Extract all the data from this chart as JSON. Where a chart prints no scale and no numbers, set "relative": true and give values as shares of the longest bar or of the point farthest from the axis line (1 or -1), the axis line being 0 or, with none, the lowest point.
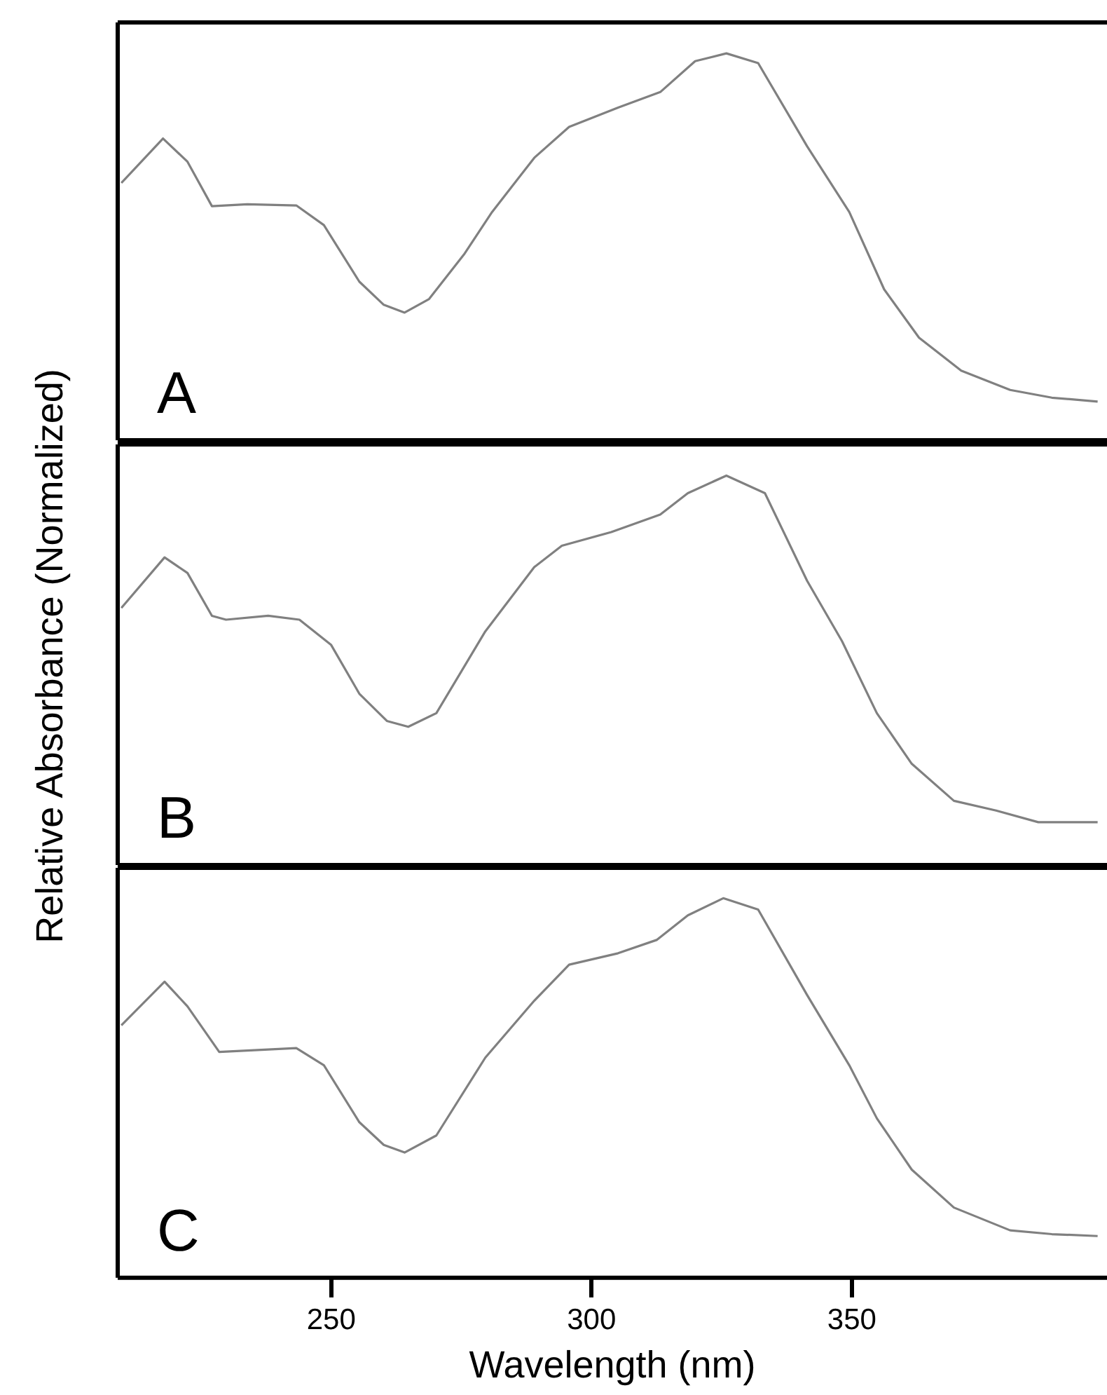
{
  "chart_data": [
    {
      "type": "line",
      "relative": true,
      "color": "#808080",
      "marker": "none",
      "line_style": "solid",
      "grid": false,
      "legend": false,
      "tick_labels": false,
      "xlim": [
        209,
        399
      ],
      "annotations": [
        "A"
      ],
      "x": [
        209.7,
        217.7,
        222.4,
        227.1,
        233.9,
        243.3,
        248.6,
        255.4,
        260.1,
        264.1,
        268.8,
        275.5,
        280.9,
        289.0,
        295.7,
        305.1,
        313.2,
        319.9,
        325.9,
        332.0,
        341.4,
        349.5,
        356.2,
        362.9,
        371.0,
        380.4,
        388.4,
        397.2
      ],
      "values": [
        0.665,
        0.78,
        0.72,
        0.605,
        0.61,
        0.607,
        0.556,
        0.41,
        0.35,
        0.33,
        0.365,
        0.48,
        0.59,
        0.73,
        0.81,
        0.86,
        0.9,
        0.98,
        1.0,
        0.975,
        0.76,
        0.59,
        0.39,
        0.265,
        0.18,
        0.13,
        0.11,
        0.1
      ]
    },
    {
      "type": "line",
      "relative": true,
      "color": "#808080",
      "marker": "none",
      "line_style": "solid",
      "grid": false,
      "legend": false,
      "tick_labels": false,
      "xlim": [
        209,
        399
      ],
      "annotations": [
        "B"
      ],
      "ylabel": "Relative Absorbance (Normalized)",
      "x": [
        209.7,
        218.0,
        222.4,
        227.1,
        229.8,
        237.9,
        243.9,
        250.0,
        255.4,
        260.7,
        264.8,
        270.2,
        279.6,
        289.0,
        294.3,
        303.8,
        313.2,
        318.5,
        325.9,
        333.3,
        341.4,
        348.1,
        354.8,
        361.5,
        369.6,
        377.7,
        385.8,
        397.2
      ],
      "values": [
        0.66,
        0.79,
        0.75,
        0.64,
        0.63,
        0.64,
        0.63,
        0.565,
        0.44,
        0.37,
        0.355,
        0.39,
        0.6,
        0.765,
        0.82,
        0.855,
        0.9,
        0.955,
        1.0,
        0.955,
        0.73,
        0.575,
        0.39,
        0.26,
        0.165,
        0.14,
        0.11,
        0.11
      ]
    },
    {
      "type": "line",
      "relative": true,
      "color": "#808080",
      "marker": "none",
      "line_style": "solid",
      "grid": false,
      "legend": false,
      "tick_labels": "x",
      "xlim": [
        209,
        399
      ],
      "xticks": [
        250,
        300,
        350
      ],
      "annotations": [
        "C"
      ],
      "xlabel": "Wavelength (nm)",
      "x": [
        209.7,
        218.0,
        222.4,
        228.5,
        243.3,
        248.6,
        255.4,
        260.1,
        264.1,
        270.2,
        279.6,
        289.0,
        295.7,
        305.1,
        312.5,
        318.5,
        325.3,
        332.0,
        341.4,
        349.5,
        354.8,
        361.5,
        369.6,
        380.4,
        388.4,
        397.2
      ],
      "values": [
        0.665,
        0.78,
        0.715,
        0.595,
        0.605,
        0.56,
        0.41,
        0.35,
        0.33,
        0.375,
        0.58,
        0.73,
        0.825,
        0.855,
        0.89,
        0.955,
        1.0,
        0.97,
        0.745,
        0.56,
        0.42,
        0.285,
        0.185,
        0.125,
        0.115,
        0.11
      ]
    }
  ]
}
